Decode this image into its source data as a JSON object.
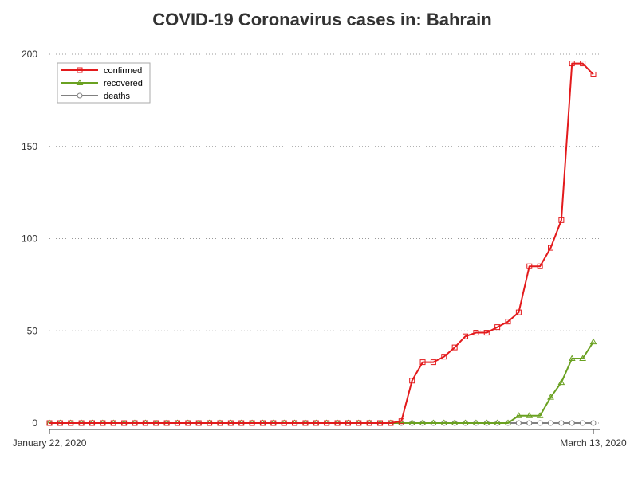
{
  "chart_data": {
    "type": "line",
    "title": "COVID-19 Coronavirus cases in: Bahrain",
    "xlabel": "",
    "ylabel": "",
    "x_tick_labels": [
      "January 22, 2020",
      "March 13, 2020"
    ],
    "x_range": [
      "2020-01-22",
      "2020-03-13"
    ],
    "x": [
      "2020-01-22",
      "2020-01-23",
      "2020-01-24",
      "2020-01-25",
      "2020-01-26",
      "2020-01-27",
      "2020-01-28",
      "2020-01-29",
      "2020-01-30",
      "2020-01-31",
      "2020-02-01",
      "2020-02-02",
      "2020-02-03",
      "2020-02-04",
      "2020-02-05",
      "2020-02-06",
      "2020-02-07",
      "2020-02-08",
      "2020-02-09",
      "2020-02-10",
      "2020-02-11",
      "2020-02-12",
      "2020-02-13",
      "2020-02-14",
      "2020-02-15",
      "2020-02-16",
      "2020-02-17",
      "2020-02-18",
      "2020-02-19",
      "2020-02-20",
      "2020-02-21",
      "2020-02-22",
      "2020-02-23",
      "2020-02-24",
      "2020-02-25",
      "2020-02-26",
      "2020-02-27",
      "2020-02-28",
      "2020-02-29",
      "2020-03-01",
      "2020-03-02",
      "2020-03-03",
      "2020-03-04",
      "2020-03-05",
      "2020-03-06",
      "2020-03-07",
      "2020-03-08",
      "2020-03-09",
      "2020-03-10",
      "2020-03-11",
      "2020-03-12",
      "2020-03-13"
    ],
    "y_ticks": [
      0,
      50,
      100,
      150,
      200
    ],
    "ylim": [
      0,
      200
    ],
    "grid": "horizontal dotted",
    "legend_position": "top-left",
    "series": [
      {
        "name": "confirmed",
        "color": "#e31a1c",
        "marker": "square",
        "values": [
          0,
          0,
          0,
          0,
          0,
          0,
          0,
          0,
          0,
          0,
          0,
          0,
          0,
          0,
          0,
          0,
          0,
          0,
          0,
          0,
          0,
          0,
          0,
          0,
          0,
          0,
          0,
          0,
          0,
          0,
          0,
          0,
          0,
          1,
          23,
          33,
          33,
          36,
          41,
          47,
          49,
          49,
          52,
          55,
          60,
          85,
          85,
          95,
          110,
          195,
          195,
          189
        ]
      },
      {
        "name": "recovered",
        "color": "#6aa121",
        "marker": "triangle",
        "values": [
          0,
          0,
          0,
          0,
          0,
          0,
          0,
          0,
          0,
          0,
          0,
          0,
          0,
          0,
          0,
          0,
          0,
          0,
          0,
          0,
          0,
          0,
          0,
          0,
          0,
          0,
          0,
          0,
          0,
          0,
          0,
          0,
          0,
          0,
          0,
          0,
          0,
          0,
          0,
          0,
          0,
          0,
          0,
          0,
          4,
          4,
          4,
          14,
          22,
          35,
          35,
          44
        ]
      },
      {
        "name": "deaths",
        "color": "#808080",
        "marker": "circle",
        "values": [
          0,
          0,
          0,
          0,
          0,
          0,
          0,
          0,
          0,
          0,
          0,
          0,
          0,
          0,
          0,
          0,
          0,
          0,
          0,
          0,
          0,
          0,
          0,
          0,
          0,
          0,
          0,
          0,
          0,
          0,
          0,
          0,
          0,
          0,
          0,
          0,
          0,
          0,
          0,
          0,
          0,
          0,
          0,
          0,
          0,
          0,
          0,
          0,
          0,
          0,
          0,
          0
        ]
      }
    ]
  }
}
